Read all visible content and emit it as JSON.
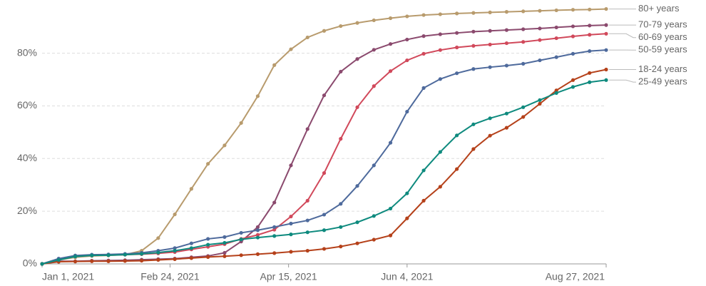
{
  "chart_data": {
    "type": "line",
    "x": [
      "2021-01-01",
      "2021-01-08",
      "2021-01-15",
      "2021-01-22",
      "2021-01-29",
      "2021-02-05",
      "2021-02-12",
      "2021-02-19",
      "2021-02-26",
      "2021-03-05",
      "2021-03-12",
      "2021-03-19",
      "2021-03-26",
      "2021-04-02",
      "2021-04-09",
      "2021-04-16",
      "2021-04-23",
      "2021-04-30",
      "2021-05-07",
      "2021-05-14",
      "2021-05-21",
      "2021-05-28",
      "2021-06-04",
      "2021-06-11",
      "2021-06-18",
      "2021-06-25",
      "2021-07-02",
      "2021-07-09",
      "2021-07-16",
      "2021-07-23",
      "2021-07-30",
      "2021-08-06",
      "2021-08-13",
      "2021-08-20",
      "2021-08-27"
    ],
    "xlim": [
      "2021-01-01",
      "2021-08-27"
    ],
    "xticks": [
      {
        "value": "2021-01-01",
        "label": "Jan 1, 2021"
      },
      {
        "value": "2021-02-24",
        "label": "Feb 24, 2021"
      },
      {
        "value": "2021-04-15",
        "label": "Apr 15, 2021"
      },
      {
        "value": "2021-06-04",
        "label": "Jun 4, 2021"
      },
      {
        "value": "2021-08-27",
        "label": "Aug 27, 2021"
      }
    ],
    "ylim": [
      0,
      97.5
    ],
    "yticks": [
      {
        "value": 0,
        "label": "0%"
      },
      {
        "value": 20,
        "label": "20%"
      },
      {
        "value": 40,
        "label": "40%"
      },
      {
        "value": 60,
        "label": "60%"
      },
      {
        "value": 80,
        "label": "80%"
      }
    ],
    "grid": true,
    "series": [
      {
        "name": "80+ years",
        "color": "#b89b6d",
        "values": [
          0,
          1.5,
          2.5,
          3,
          3.2,
          3.5,
          5,
          9.8,
          18.8,
          28.5,
          38,
          45,
          53.5,
          63.7,
          75.5,
          81.5,
          86,
          88.5,
          90.3,
          91.5,
          92.5,
          93.3,
          94,
          94.5,
          94.8,
          95.1,
          95.3,
          95.5,
          95.7,
          95.9,
          96.1,
          96.3,
          96.5,
          96.6,
          96.8
        ]
      },
      {
        "name": "70-79 years",
        "color": "#8b4a6e",
        "values": [
          0,
          1,
          1,
          1.2,
          1.3,
          1.4,
          1.6,
          1.8,
          2,
          2.5,
          3,
          4.2,
          8.5,
          14,
          23.3,
          37.4,
          51.2,
          64,
          73,
          77.8,
          81.3,
          83.5,
          85.2,
          86.5,
          87.2,
          87.7,
          88.2,
          88.5,
          88.8,
          89.1,
          89.4,
          89.8,
          90.2,
          90.5,
          90.7
        ]
      },
      {
        "name": "60-69 years",
        "color": "#d1495b",
        "values": [
          0,
          1.5,
          3,
          3.3,
          3.4,
          3.5,
          3.7,
          4,
          4.5,
          5.5,
          6.5,
          7.5,
          9.5,
          11,
          13,
          18,
          24,
          34.5,
          47.5,
          59.5,
          67.5,
          73.2,
          77.3,
          79.8,
          81.2,
          82.2,
          82.8,
          83.3,
          83.8,
          84.3,
          85,
          85.7,
          86.4,
          87,
          87.4
        ]
      },
      {
        "name": "50-59 years",
        "color": "#4e6a9c",
        "values": [
          0,
          2,
          3.2,
          3.5,
          3.6,
          3.8,
          4.2,
          5,
          6,
          7.8,
          9.5,
          10.2,
          11.8,
          12.8,
          14,
          15.3,
          16.5,
          18.7,
          22.8,
          29.6,
          37.4,
          46,
          57.8,
          66.8,
          70.2,
          72.4,
          74,
          74.7,
          75.3,
          76,
          77.3,
          78.5,
          79.8,
          80.8,
          81.2
        ]
      },
      {
        "name": "18-24 years",
        "color": "#b5411a",
        "values": [
          0,
          0.8,
          0.9,
          1,
          1,
          1.1,
          1.2,
          1.5,
          1.8,
          2.2,
          2.6,
          2.9,
          3.3,
          3.7,
          4.1,
          4.6,
          5,
          5.7,
          6.6,
          7.8,
          9.2,
          10.8,
          17.3,
          24,
          29.3,
          36,
          43.6,
          48.7,
          51.7,
          55.8,
          60.8,
          65.9,
          69.8,
          72.5,
          73.8
        ]
      },
      {
        "name": "25-49 years",
        "color": "#0e8a7e",
        "values": [
          0,
          1.5,
          2.8,
          3.2,
          3.3,
          3.5,
          3.8,
          4.3,
          5,
          6,
          7.3,
          8,
          9.3,
          10,
          10.6,
          11.2,
          12,
          12.8,
          14,
          15.8,
          18.2,
          21,
          26.8,
          35.5,
          42.5,
          48.8,
          53,
          55.3,
          57.1,
          59.5,
          62.2,
          64.9,
          67.2,
          69,
          69.8
        ]
      }
    ]
  }
}
